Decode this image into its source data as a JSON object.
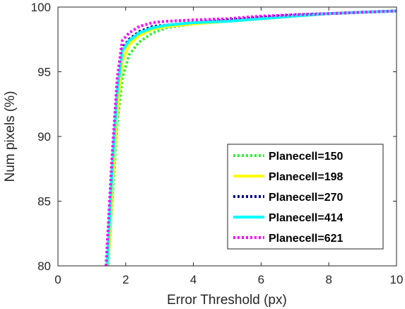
{
  "chart_data": {
    "type": "line",
    "xlabel": "Error Threshold (px)",
    "ylabel": "Num pixels (%)",
    "xlim": [
      0,
      10
    ],
    "ylim": [
      80,
      100
    ],
    "xticks": [
      0,
      2,
      4,
      6,
      8,
      10
    ],
    "yticks": [
      80,
      85,
      90,
      95,
      100
    ],
    "grid": false,
    "legend_position": "bottom-right",
    "series": [
      {
        "name": "Planecell=150",
        "color": "#33ee33",
        "style": "dotted",
        "x": [
          1.48,
          1.6,
          1.75,
          1.9,
          2.1,
          2.4,
          2.8,
          3.2,
          4,
          5,
          6,
          7,
          8,
          9,
          10
        ],
        "y": [
          80,
          85,
          91,
          94.5,
          96.3,
          97.3,
          98.0,
          98.4,
          98.7,
          98.9,
          99.1,
          99.3,
          99.5,
          99.6,
          99.7
        ]
      },
      {
        "name": "Planecell=198",
        "color": "#ffff00",
        "style": "solid",
        "x": [
          1.48,
          1.6,
          1.75,
          1.9,
          2.1,
          2.4,
          2.8,
          3.2,
          4,
          5,
          6,
          7,
          8,
          9,
          10
        ],
        "y": [
          80,
          86,
          92,
          95.8,
          97.1,
          97.8,
          98.3,
          98.5,
          98.7,
          98.9,
          99.1,
          99.3,
          99.5,
          99.6,
          99.7
        ]
      },
      {
        "name": "Planecell=270",
        "color": "#00008b",
        "style": "dotted",
        "x": [
          1.45,
          1.6,
          1.75,
          1.9,
          2.1,
          2.4,
          2.8,
          3.2,
          4,
          5,
          6,
          7,
          8,
          9,
          10
        ],
        "y": [
          80,
          87.5,
          93.5,
          96.8,
          97.5,
          98.1,
          98.5,
          98.6,
          98.8,
          99.0,
          99.2,
          99.4,
          99.5,
          99.6,
          99.7
        ]
      },
      {
        "name": "Planecell=414",
        "color": "#00ffff",
        "style": "solid",
        "x": [
          1.45,
          1.6,
          1.75,
          1.9,
          2.1,
          2.4,
          2.8,
          3.2,
          4,
          5,
          6,
          7,
          8,
          9,
          10
        ],
        "y": [
          80,
          87.5,
          93.5,
          96.6,
          97.4,
          98.0,
          98.4,
          98.6,
          98.8,
          98.9,
          99.1,
          99.3,
          99.5,
          99.6,
          99.7
        ]
      },
      {
        "name": "Planecell=621",
        "color": "#ff00ff",
        "style": "dotted",
        "x": [
          1.42,
          1.6,
          1.75,
          1.9,
          2.1,
          2.4,
          2.8,
          3.2,
          4,
          5,
          6,
          7,
          8,
          9,
          10
        ],
        "y": [
          80,
          88.5,
          94.5,
          97.4,
          98.0,
          98.5,
          98.8,
          98.9,
          99.0,
          99.1,
          99.3,
          99.4,
          99.5,
          99.6,
          99.7
        ]
      }
    ]
  }
}
